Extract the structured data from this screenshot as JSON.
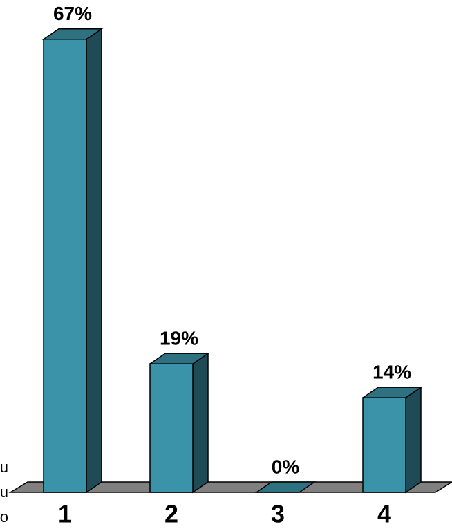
{
  "chart_data": {
    "type": "bar3d",
    "categories": [
      "1",
      "2",
      "3",
      "4"
    ],
    "values": [
      67,
      19,
      0,
      14
    ],
    "value_labels": [
      "67%",
      "19%",
      "0%",
      "14%"
    ],
    "color": "#3a93a8",
    "side_text": [
      "u",
      "u",
      "o"
    ]
  }
}
